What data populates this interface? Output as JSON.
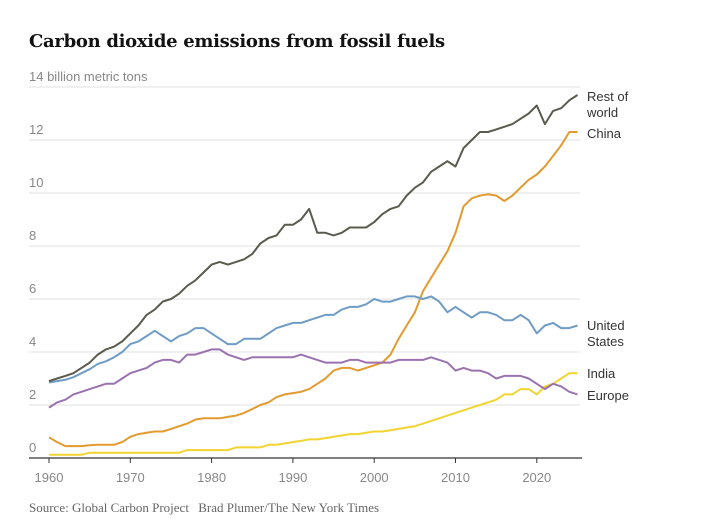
{
  "title": "Carbon dioxide emissions from fossil fuels",
  "source": "Source: Global Carbon Project",
  "credit": "Brad Plumer/The New York Times",
  "chart_data": {
    "type": "line",
    "title": "Carbon dioxide emissions from fossil fuels",
    "ylabel": "billion metric tons",
    "y_unit_label": "14 billion metric tons",
    "xlabel": "",
    "xlim": [
      1960,
      2025
    ],
    "ylim": [
      0,
      14
    ],
    "yticks": [
      0,
      2,
      4,
      6,
      8,
      10,
      12,
      14
    ],
    "ytick_labels": [
      "0",
      "2",
      "4",
      "6",
      "8",
      "10",
      "12",
      "14 billion metric tons"
    ],
    "xticks": [
      1960,
      1970,
      1980,
      1990,
      2000,
      2010,
      2020
    ],
    "xtick_labels": [
      "1960",
      "1970",
      "1980",
      "1990",
      "2000",
      "2010",
      "2020"
    ],
    "grid": true,
    "legend": "right-inline",
    "x": [
      1960,
      1961,
      1962,
      1963,
      1964,
      1965,
      1966,
      1967,
      1968,
      1969,
      1970,
      1971,
      1972,
      1973,
      1974,
      1975,
      1976,
      1977,
      1978,
      1979,
      1980,
      1981,
      1982,
      1983,
      1984,
      1985,
      1986,
      1987,
      1988,
      1989,
      1990,
      1991,
      1992,
      1993,
      1994,
      1995,
      1996,
      1997,
      1998,
      1999,
      2000,
      2001,
      2002,
      2003,
      2004,
      2005,
      2006,
      2007,
      2008,
      2009,
      2010,
      2011,
      2012,
      2013,
      2014,
      2015,
      2016,
      2017,
      2018,
      2019,
      2020,
      2021,
      2022,
      2023,
      2024,
      2025
    ],
    "series": [
      {
        "name": "Rest of world",
        "label": [
          "Rest of",
          "world"
        ],
        "color": "#5a5a4e",
        "values": [
          2.9,
          3.0,
          3.1,
          3.2,
          3.4,
          3.6,
          3.9,
          4.1,
          4.2,
          4.4,
          4.7,
          5.0,
          5.4,
          5.6,
          5.9,
          6.0,
          6.2,
          6.5,
          6.7,
          7.0,
          7.3,
          7.4,
          7.3,
          7.4,
          7.5,
          7.7,
          8.1,
          8.3,
          8.4,
          8.8,
          8.8,
          9.0,
          9.4,
          8.5,
          8.5,
          8.4,
          8.5,
          8.7,
          8.7,
          8.7,
          8.9,
          9.2,
          9.4,
          9.5,
          9.9,
          10.2,
          10.4,
          10.8,
          11.0,
          11.2,
          11.0,
          11.7,
          12.0,
          12.3,
          12.3,
          12.4,
          12.5,
          12.6,
          12.8,
          13.0,
          13.3,
          12.6,
          13.1,
          13.2,
          13.5,
          13.7
        ]
      },
      {
        "name": "China",
        "label": [
          "China"
        ],
        "color": "#e39a2f",
        "values": [
          0.78,
          0.6,
          0.45,
          0.45,
          0.45,
          0.48,
          0.5,
          0.5,
          0.5,
          0.6,
          0.8,
          0.9,
          0.95,
          1.0,
          1.0,
          1.1,
          1.2,
          1.3,
          1.45,
          1.5,
          1.5,
          1.5,
          1.55,
          1.6,
          1.7,
          1.85,
          2.0,
          2.1,
          2.3,
          2.4,
          2.45,
          2.5,
          2.6,
          2.8,
          3.0,
          3.3,
          3.4,
          3.4,
          3.3,
          3.4,
          3.5,
          3.6,
          3.9,
          4.5,
          5.0,
          5.5,
          6.3,
          6.8,
          7.3,
          7.8,
          8.5,
          9.5,
          9.8,
          9.9,
          9.95,
          9.9,
          9.7,
          9.9,
          10.2,
          10.5,
          10.7,
          11.0,
          11.4,
          11.8,
          12.3,
          12.3
        ]
      },
      {
        "name": "United States",
        "label": [
          "United",
          "States"
        ],
        "color": "#6f9cc4",
        "values": [
          2.85,
          2.9,
          2.95,
          3.05,
          3.2,
          3.35,
          3.55,
          3.65,
          3.8,
          4.0,
          4.3,
          4.4,
          4.6,
          4.8,
          4.6,
          4.4,
          4.6,
          4.7,
          4.9,
          4.9,
          4.7,
          4.5,
          4.3,
          4.3,
          4.5,
          4.5,
          4.5,
          4.7,
          4.9,
          5.0,
          5.1,
          5.1,
          5.2,
          5.3,
          5.4,
          5.4,
          5.6,
          5.7,
          5.7,
          5.8,
          6.0,
          5.9,
          5.9,
          6.0,
          6.1,
          6.1,
          6.0,
          6.1,
          5.9,
          5.5,
          5.7,
          5.5,
          5.3,
          5.5,
          5.5,
          5.4,
          5.2,
          5.2,
          5.4,
          5.2,
          4.7,
          5.0,
          5.1,
          4.9,
          4.9,
          5.0
        ]
      },
      {
        "name": "India",
        "label": [
          "India"
        ],
        "color": "#f2d431",
        "values": [
          0.12,
          0.12,
          0.12,
          0.12,
          0.12,
          0.2,
          0.2,
          0.2,
          0.2,
          0.2,
          0.2,
          0.2,
          0.2,
          0.2,
          0.2,
          0.2,
          0.2,
          0.3,
          0.3,
          0.3,
          0.3,
          0.3,
          0.3,
          0.4,
          0.4,
          0.4,
          0.4,
          0.5,
          0.5,
          0.55,
          0.6,
          0.65,
          0.7,
          0.7,
          0.75,
          0.8,
          0.85,
          0.9,
          0.9,
          0.95,
          1.0,
          1.0,
          1.05,
          1.1,
          1.15,
          1.2,
          1.3,
          1.4,
          1.5,
          1.6,
          1.7,
          1.8,
          1.9,
          2.0,
          2.1,
          2.2,
          2.4,
          2.4,
          2.6,
          2.6,
          2.4,
          2.7,
          2.8,
          3.0,
          3.2,
          3.2
        ]
      },
      {
        "name": "Europe",
        "label": [
          "Europe"
        ],
        "color": "#9b72b0",
        "values": [
          1.9,
          2.1,
          2.2,
          2.4,
          2.5,
          2.6,
          2.7,
          2.8,
          2.8,
          3.0,
          3.2,
          3.3,
          3.4,
          3.6,
          3.7,
          3.7,
          3.6,
          3.9,
          3.9,
          4.0,
          4.1,
          4.1,
          3.9,
          3.8,
          3.7,
          3.8,
          3.8,
          3.8,
          3.8,
          3.8,
          3.8,
          3.9,
          3.8,
          3.7,
          3.6,
          3.6,
          3.6,
          3.7,
          3.7,
          3.6,
          3.6,
          3.6,
          3.6,
          3.7,
          3.7,
          3.7,
          3.7,
          3.8,
          3.7,
          3.6,
          3.3,
          3.4,
          3.3,
          3.3,
          3.2,
          3.0,
          3.1,
          3.1,
          3.1,
          3.0,
          2.8,
          2.6,
          2.8,
          2.7,
          2.5,
          2.4
        ]
      }
    ]
  }
}
